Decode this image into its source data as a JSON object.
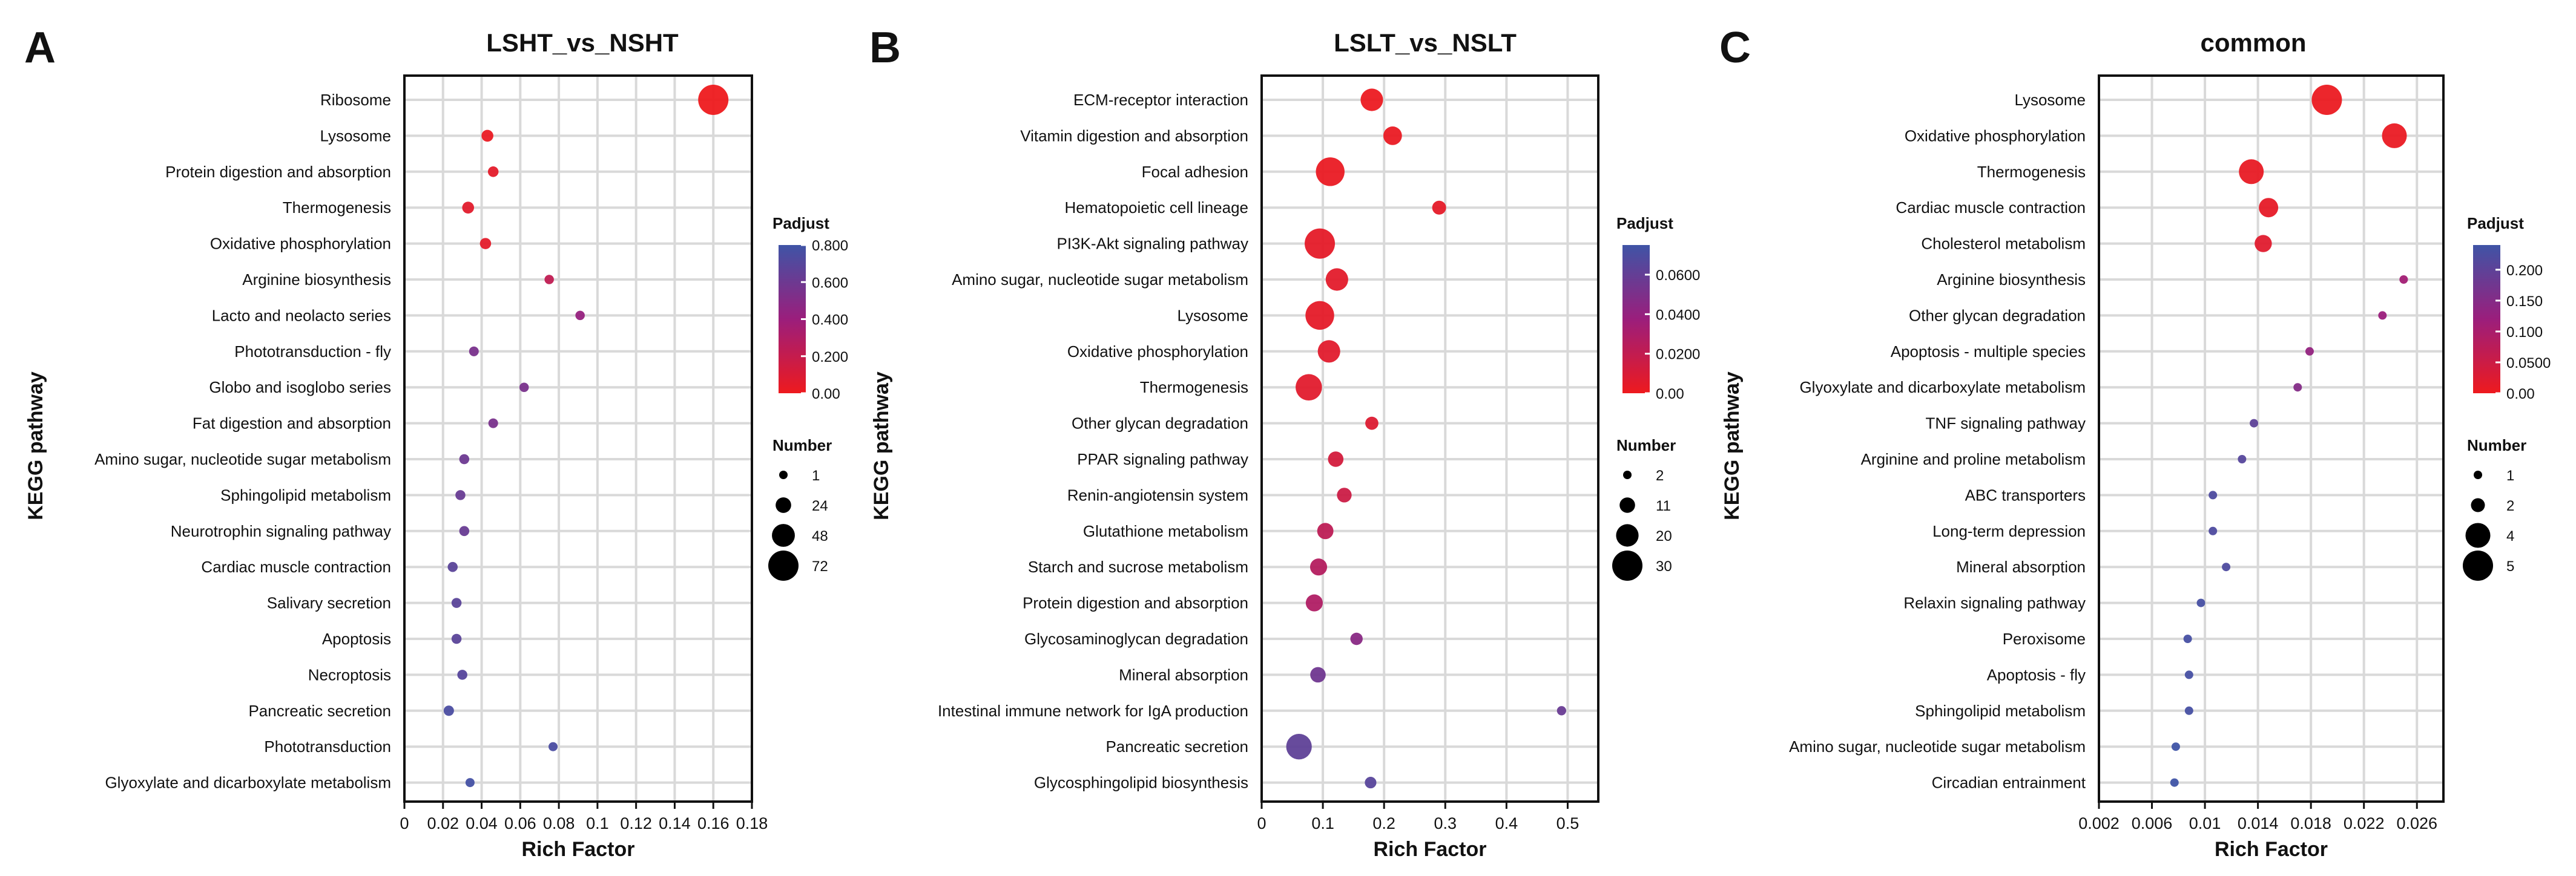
{
  "chart_data": [
    {
      "type": "scatter",
      "panel_letter": "A",
      "title": "LSHT_vs_NSHT",
      "xlabel": "Rich Factor",
      "ylabel": "KEGG pathway",
      "xlim": [
        0,
        0.18
      ],
      "xticks": [
        0,
        0.02,
        0.04,
        0.06,
        0.08,
        0.1,
        0.12,
        0.14,
        0.16,
        0.18
      ],
      "xtick_labels": [
        "0",
        "0.02",
        "0.04",
        "0.06",
        "0.08",
        "0.1",
        "0.12",
        "0.14",
        "0.16",
        "0.18"
      ],
      "color_legend": {
        "title": "Padjust",
        "min": 0,
        "max": 0.8,
        "ticks": [
          0,
          0.2,
          0.4,
          0.6,
          0.8
        ],
        "tick_labels": [
          "0.00",
          "0.200",
          "0.400",
          "0.600",
          "0.800"
        ]
      },
      "size_legend": {
        "title": "Number",
        "values": [
          1,
          24,
          48,
          72
        ],
        "labels": [
          "1",
          "24",
          "48",
          "72"
        ]
      },
      "points": [
        {
          "pathway": "Ribosome",
          "rich_factor": 0.16,
          "number": 72,
          "padjust": 0.0
        },
        {
          "pathway": "Lysosome",
          "rich_factor": 0.043,
          "number": 12,
          "padjust": 0.02
        },
        {
          "pathway": "Protein digestion and absorption",
          "rich_factor": 0.046,
          "number": 8,
          "padjust": 0.05
        },
        {
          "pathway": "Thermogenesis",
          "rich_factor": 0.033,
          "number": 12,
          "padjust": 0.06
        },
        {
          "pathway": "Oxidative phosphorylation",
          "rich_factor": 0.042,
          "number": 10,
          "padjust": 0.05
        },
        {
          "pathway": "Arginine biosynthesis",
          "rich_factor": 0.075,
          "number": 4,
          "padjust": 0.22
        },
        {
          "pathway": "Lacto and neolacto series",
          "rich_factor": 0.091,
          "number": 4,
          "padjust": 0.42
        },
        {
          "pathway": "Phototransduction - fly",
          "rich_factor": 0.036,
          "number": 5,
          "padjust": 0.55
        },
        {
          "pathway": "Globo and isoglobo series",
          "rich_factor": 0.062,
          "number": 4,
          "padjust": 0.55
        },
        {
          "pathway": "Fat digestion and absorption",
          "rich_factor": 0.046,
          "number": 5,
          "padjust": 0.55
        },
        {
          "pathway": "Amino sugar, nucleotide sugar metabolism",
          "rich_factor": 0.031,
          "number": 6,
          "padjust": 0.6
        },
        {
          "pathway": "Sphingolipid metabolism",
          "rich_factor": 0.029,
          "number": 6,
          "padjust": 0.62
        },
        {
          "pathway": "Neurotrophin signaling pathway",
          "rich_factor": 0.031,
          "number": 6,
          "padjust": 0.62
        },
        {
          "pathway": "Cardiac muscle contraction",
          "rich_factor": 0.025,
          "number": 6,
          "padjust": 0.68
        },
        {
          "pathway": "Salivary secretion",
          "rich_factor": 0.027,
          "number": 6,
          "padjust": 0.68
        },
        {
          "pathway": "Apoptosis",
          "rich_factor": 0.027,
          "number": 6,
          "padjust": 0.68
        },
        {
          "pathway": "Necroptosis",
          "rich_factor": 0.03,
          "number": 6,
          "padjust": 0.7
        },
        {
          "pathway": "Pancreatic secretion",
          "rich_factor": 0.023,
          "number": 7,
          "padjust": 0.75
        },
        {
          "pathway": "Phototransduction",
          "rich_factor": 0.077,
          "number": 3,
          "padjust": 0.75
        },
        {
          "pathway": "Glyoxylate and dicarboxylate metabolism",
          "rich_factor": 0.034,
          "number": 3,
          "padjust": 0.78
        }
      ]
    },
    {
      "type": "scatter",
      "panel_letter": "B",
      "title": "LSLT_vs_NSLT",
      "xlabel": "Rich Factor",
      "ylabel": "KEGG pathway",
      "xlim": [
        0,
        0.55
      ],
      "xticks": [
        0,
        0.1,
        0.2,
        0.3,
        0.4,
        0.5
      ],
      "xtick_labels": [
        "0",
        "0.1",
        "0.2",
        "0.3",
        "0.4",
        "0.5"
      ],
      "color_legend": {
        "title": "Padjust",
        "min": 0,
        "max": 0.075,
        "ticks": [
          0,
          0.02,
          0.04,
          0.06
        ],
        "tick_labels": [
          "0.00",
          "0.0200",
          "0.0400",
          "0.0600"
        ]
      },
      "size_legend": {
        "title": "Number",
        "values": [
          2,
          11,
          20,
          30
        ],
        "labels": [
          "2",
          "11",
          "20",
          "30"
        ]
      },
      "points": [
        {
          "pathway": "ECM-receptor interaction",
          "rich_factor": 0.18,
          "number": 20,
          "padjust": 0.001
        },
        {
          "pathway": "Vitamin digestion and absorption",
          "rich_factor": 0.214,
          "number": 15,
          "padjust": 0.002
        },
        {
          "pathway": "Focal adhesion",
          "rich_factor": 0.112,
          "number": 28,
          "padjust": 0.002
        },
        {
          "pathway": "Hematopoietic cell lineage",
          "rich_factor": 0.29,
          "number": 9,
          "padjust": 0.004
        },
        {
          "pathway": "PI3K-Akt signaling pathway",
          "rich_factor": 0.095,
          "number": 30,
          "padjust": 0.004
        },
        {
          "pathway": "Amino sugar, nucleotide sugar metabolism",
          "rich_factor": 0.123,
          "number": 20,
          "padjust": 0.005
        },
        {
          "pathway": "Lysosome",
          "rich_factor": 0.095,
          "number": 28,
          "padjust": 0.004
        },
        {
          "pathway": "Oxidative phosphorylation",
          "rich_factor": 0.11,
          "number": 20,
          "padjust": 0.006
        },
        {
          "pathway": "Thermogenesis",
          "rich_factor": 0.077,
          "number": 25,
          "padjust": 0.006
        },
        {
          "pathway": "Other glycan degradation",
          "rich_factor": 0.18,
          "number": 8,
          "padjust": 0.008
        },
        {
          "pathway": "PPAR signaling pathway",
          "rich_factor": 0.121,
          "number": 11,
          "padjust": 0.012
        },
        {
          "pathway": "Renin-angiotensin system",
          "rich_factor": 0.135,
          "number": 10,
          "padjust": 0.016
        },
        {
          "pathway": "Glutathione metabolism",
          "rich_factor": 0.104,
          "number": 12,
          "padjust": 0.022
        },
        {
          "pathway": "Starch and sucrose metabolism",
          "rich_factor": 0.093,
          "number": 13,
          "padjust": 0.026
        },
        {
          "pathway": "Protein digestion and absorption",
          "rich_factor": 0.086,
          "number": 13,
          "padjust": 0.028
        },
        {
          "pathway": "Glycosaminoglycan degradation",
          "rich_factor": 0.155,
          "number": 7,
          "padjust": 0.045
        },
        {
          "pathway": "Mineral absorption",
          "rich_factor": 0.092,
          "number": 11,
          "padjust": 0.055
        },
        {
          "pathway": "Intestinal immune network for IgA production",
          "rich_factor": 0.49,
          "number": 3,
          "padjust": 0.058
        },
        {
          "pathway": "Pancreatic secretion",
          "rich_factor": 0.061,
          "number": 24,
          "padjust": 0.062
        },
        {
          "pathway": "Glycosphingolipid biosynthesis",
          "rich_factor": 0.178,
          "number": 6,
          "padjust": 0.065
        }
      ]
    },
    {
      "type": "scatter",
      "panel_letter": "C",
      "title": "common",
      "xlabel": "Rich Factor",
      "ylabel": "KEGG pathway",
      "xlim": [
        0.002,
        0.028
      ],
      "xticks": [
        0.002,
        0.006,
        0.01,
        0.014,
        0.018,
        0.022,
        0.026
      ],
      "xtick_labels": [
        "0.002",
        "0.006",
        "0.01",
        "0.014",
        "0.018",
        "0.022",
        "0.026"
      ],
      "color_legend": {
        "title": "Padjust",
        "min": 0,
        "max": 0.24,
        "ticks": [
          0,
          0.05,
          0.1,
          0.15,
          0.2
        ],
        "tick_labels": [
          "0.00",
          "0.0500",
          "0.100",
          "0.150",
          "0.200"
        ]
      },
      "size_legend": {
        "title": "Number",
        "values": [
          1,
          2,
          4,
          5
        ],
        "labels": [
          "1",
          "2",
          "4",
          "5"
        ]
      },
      "points": [
        {
          "pathway": "Lysosome",
          "rich_factor": 0.0192,
          "number": 5,
          "padjust": 0.004
        },
        {
          "pathway": "Oxidative phosphorylation",
          "rich_factor": 0.0243,
          "number": 4,
          "padjust": 0.006
        },
        {
          "pathway": "Thermogenesis",
          "rich_factor": 0.0135,
          "number": 4,
          "padjust": 0.008
        },
        {
          "pathway": "Cardiac muscle contraction",
          "rich_factor": 0.0148,
          "number": 3,
          "padjust": 0.012
        },
        {
          "pathway": "Cholesterol metabolism",
          "rich_factor": 0.0144,
          "number": 2.6,
          "padjust": 0.02
        },
        {
          "pathway": "Arginine biosynthesis",
          "rich_factor": 0.025,
          "number": 1,
          "padjust": 0.11
        },
        {
          "pathway": "Other glycan degradation",
          "rich_factor": 0.0234,
          "number": 1,
          "padjust": 0.12
        },
        {
          "pathway": "Apoptosis - multiple species",
          "rich_factor": 0.0179,
          "number": 1,
          "padjust": 0.13
        },
        {
          "pathway": "Glyoxylate and dicarboxylate metabolism",
          "rich_factor": 0.017,
          "number": 1,
          "padjust": 0.15
        },
        {
          "pathway": "TNF signaling pathway",
          "rich_factor": 0.0137,
          "number": 1,
          "padjust": 0.2
        },
        {
          "pathway": "Arginine and proline metabolism",
          "rich_factor": 0.0128,
          "number": 1,
          "padjust": 0.21
        },
        {
          "pathway": "ABC transporters",
          "rich_factor": 0.0106,
          "number": 1,
          "padjust": 0.22
        },
        {
          "pathway": "Long-term depression",
          "rich_factor": 0.0106,
          "number": 1,
          "padjust": 0.22
        },
        {
          "pathway": "Mineral absorption",
          "rich_factor": 0.0116,
          "number": 1,
          "padjust": 0.22
        },
        {
          "pathway": "Relaxin signaling pathway",
          "rich_factor": 0.0097,
          "number": 1,
          "padjust": 0.23
        },
        {
          "pathway": "Peroxisome",
          "rich_factor": 0.0087,
          "number": 1,
          "padjust": 0.23
        },
        {
          "pathway": "Apoptosis - fly",
          "rich_factor": 0.0088,
          "number": 1,
          "padjust": 0.23
        },
        {
          "pathway": "Sphingolipid metabolism",
          "rich_factor": 0.0088,
          "number": 1,
          "padjust": 0.23
        },
        {
          "pathway": "Amino sugar, nucleotide sugar metabolism",
          "rich_factor": 0.0078,
          "number": 1,
          "padjust": 0.24
        },
        {
          "pathway": "Circadian entrainment",
          "rich_factor": 0.0077,
          "number": 1,
          "padjust": 0.24
        }
      ]
    }
  ]
}
